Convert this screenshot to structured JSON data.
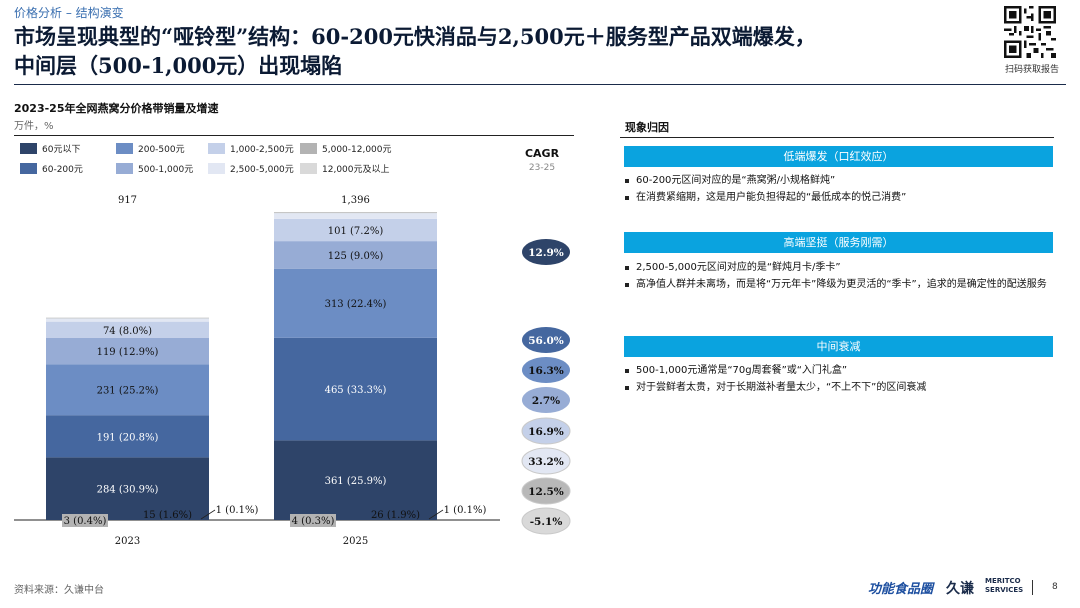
{
  "header": {
    "section_tag": "价格分析 – 结构演变",
    "title_line1": "市场呈现典型的“哑铃型”结构：60-200元快消品与2,500元＋服务型产品双端爆发，",
    "title_line2": "中间层（500-1,000元）出现塌陷",
    "qr_label": "扫码获取报告"
  },
  "chart_data": {
    "type": "bar",
    "stacked": true,
    "title": "2023-25年全网燕窝分价格带销量及增速",
    "subtitle": "万件，%",
    "categories": [
      "2023",
      "2025"
    ],
    "totals": [
      "917",
      "1,396"
    ],
    "series": [
      {
        "name": "60元以下",
        "color": "#2e4469",
        "values": [
          284,
          361
        ],
        "labels": [
          "284 (30.9%)",
          "361 (25.9%)"
        ],
        "cagr": "12.9%"
      },
      {
        "name": "60-200元",
        "color": "#45679f",
        "values": [
          191,
          465
        ],
        "labels": [
          "191 (20.8%)",
          "465 (33.3%)"
        ],
        "cagr": "56.0%"
      },
      {
        "name": "200-500元",
        "color": "#6c8dc4",
        "values": [
          231,
          313
        ],
        "labels": [
          "231 (25.2%)",
          "313 (22.4%)"
        ],
        "cagr": "16.3%"
      },
      {
        "name": "500-1,000元",
        "color": "#97acd5",
        "values": [
          119,
          125
        ],
        "labels": [
          "119 (12.9%)",
          "125 (9.0%)"
        ],
        "cagr": "2.7%"
      },
      {
        "name": "1,000-2,500元",
        "color": "#c4d0e9",
        "values": [
          74,
          101
        ],
        "labels": [
          "74 (8.0%)",
          "101 (7.2%)"
        ],
        "cagr": "16.9%"
      },
      {
        "name": "2,500-5,000元",
        "color": "#e2e7f3",
        "values": [
          15,
          26
        ],
        "labels": [
          "15 (1.6%)",
          "26 (1.9%)"
        ],
        "cagr": "33.2%"
      },
      {
        "name": "5,000-12,000元",
        "color": "#b3b3b3",
        "values": [
          3,
          4
        ],
        "labels": [
          "3 (0.4%)",
          "4 (0.3%)"
        ],
        "cagr": "12.5%"
      },
      {
        "name": "12,000元及以上",
        "color": "#d9d9d9",
        "values": [
          1,
          1
        ],
        "labels": [
          "1 (0.1%)",
          "1 (0.1%)"
        ],
        "cagr": "-5.1%"
      }
    ],
    "cagr_title": "CAGR",
    "cagr_sub": "23-25",
    "legend_position": "top"
  },
  "analysis": {
    "title": "现象归因",
    "sections": [
      {
        "heading": "低端爆发（口红效应）",
        "bullets": [
          "60-200元区间对应的是“燕窝粥/小规格鲜炖”",
          "在消费紧缩期，这是用户能负担得起的“最低成本的悦己消费”"
        ]
      },
      {
        "heading": "高端坚挺（服务刚需）",
        "bullets": [
          "2,500-5,000元区间对应的是“鲜炖月卡/季卡”",
          "高净值人群并未离场，而是将“万元年卡”降级为更灵活的“季卡”，追求的是确定性的配送服务"
        ]
      },
      {
        "heading": "中间衰减",
        "bullets": [
          "500-1,000元通常是“70g周套餐”或“入门礼盒”",
          "对于尝鲜者太贵，对于长期滋补者量太少，“不上不下”的区间衰减"
        ]
      }
    ]
  },
  "footer": {
    "source": "资料来源：久谦中台",
    "logo1": "功能食品圈",
    "logo2": "久谦",
    "logo3_line1": "MERITCO",
    "logo3_line2": "SERVICES",
    "page": "8"
  }
}
